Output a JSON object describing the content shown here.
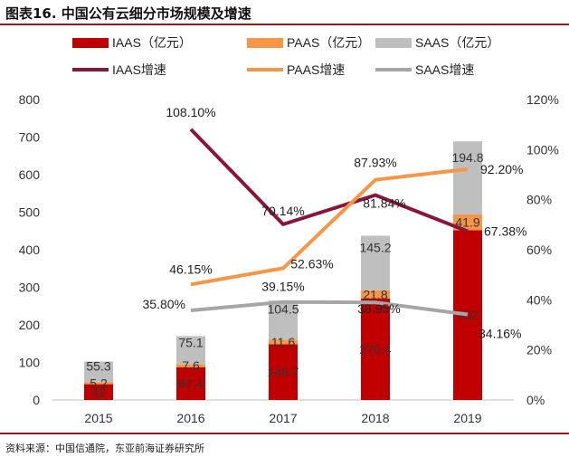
{
  "figure_title": "图表16. 中国公有云细分市场规模及增速",
  "source_note": "资料来源：中国信通院，东亚前海证券研究所",
  "colors": {
    "iaas": "#C00000",
    "paas": "#F79646",
    "saas": "#BFBFBF",
    "iaas_growth": "#8B1538",
    "paas_growth": "#F79646",
    "saas_growth": "#A6A6A6",
    "border": "#8B1A1A"
  },
  "chart_data": {
    "type": "bar",
    "stacked": true,
    "categories": [
      "2015",
      "2016",
      "2017",
      "2018",
      "2019"
    ],
    "series": [
      {
        "name": "IAAS（亿元）",
        "key": "iaas",
        "values": [
          42,
          87.4,
          148.7,
          270.4,
          452
        ],
        "labels": [
          "42",
          "87.4",
          "148.7",
          "270.4",
          "452"
        ]
      },
      {
        "name": "PAAS（亿元）",
        "key": "paas",
        "values": [
          5.2,
          7.6,
          11.6,
          21.8,
          41.9
        ],
        "labels": [
          "5.2",
          "7.6",
          "11.6",
          "21.8",
          "41.9"
        ]
      },
      {
        "name": "SAAS（亿元）",
        "key": "saas",
        "values": [
          55.3,
          75.1,
          104.5,
          145.2,
          194.8
        ],
        "labels": [
          "55.3",
          "75.1",
          "104.5",
          "145.2",
          "194.8"
        ]
      }
    ],
    "growth_series": [
      {
        "name": "IAAS增速",
        "key": "iaas_growth",
        "values": [
          null,
          108.1,
          70.14,
          81.84,
          67.38
        ],
        "labels": [
          "",
          "108.10%",
          "70.14%",
          "81.84%",
          "67.38%"
        ]
      },
      {
        "name": "PAAS增速",
        "key": "paas_growth",
        "values": [
          null,
          46.15,
          52.63,
          87.93,
          92.2
        ],
        "labels": [
          "",
          "46.15%",
          "52.63%",
          "87.93%",
          "92.20%"
        ]
      },
      {
        "name": "SAAS增速",
        "key": "saas_growth",
        "values": [
          null,
          35.8,
          39.15,
          38.95,
          34.16
        ],
        "labels": [
          "",
          "35.80%",
          "39.15%",
          "38.95%",
          "34.16%"
        ]
      }
    ],
    "y_left": {
      "min": 0,
      "max": 800,
      "ticks": [
        "0",
        "100",
        "200",
        "300",
        "400",
        "500",
        "600",
        "700",
        "800"
      ]
    },
    "y_right": {
      "min": 0,
      "max": 120,
      "ticks": [
        "0%",
        "20%",
        "40%",
        "60%",
        "80%",
        "100%",
        "120%"
      ]
    },
    "legend_position": "top",
    "grid": false
  }
}
